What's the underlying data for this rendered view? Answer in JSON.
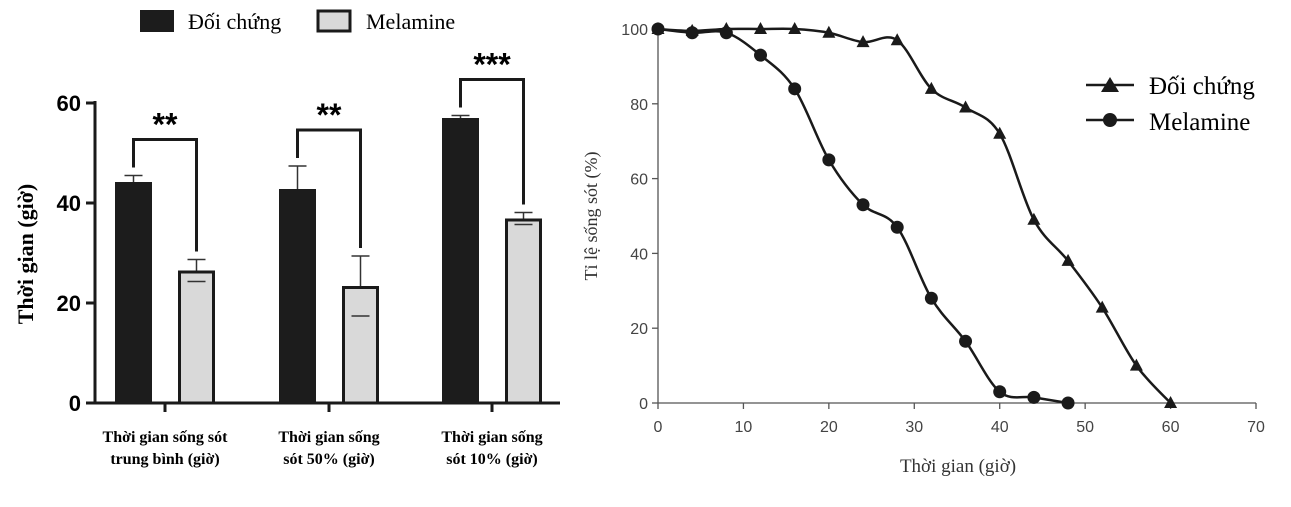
{
  "colors": {
    "control": "#1c1c1c",
    "melamine": "#d9d9d9",
    "axis": "#1a1a1a",
    "line_axis": "#555555"
  },
  "chart_data": [
    {
      "type": "bar",
      "legend": [
        "Đối chứng",
        "Melamine"
      ],
      "legend_placement": "top",
      "ylabel": "Thời gian (giờ)",
      "ylim": [
        0,
        60
      ],
      "yticks": [
        "0",
        "20",
        "40",
        "60"
      ],
      "categories": [
        [
          "Thời gian sống sót",
          "trung bình (giờ)"
        ],
        [
          "Thời gian sống",
          "sót 50% (giờ)"
        ],
        [
          "Thời gian sống",
          "sót 10% (giờ)"
        ]
      ],
      "series": [
        {
          "name": "Đối chứng",
          "values": [
            44.2,
            42.8,
            57.0
          ],
          "errors": [
            1.3,
            4.6,
            0.5
          ]
        },
        {
          "name": "Melamine",
          "values": [
            26.5,
            23.4,
            36.9
          ],
          "errors": [
            2.2,
            6.0,
            1.2
          ]
        }
      ],
      "significance": [
        "**",
        "**",
        "***"
      ]
    },
    {
      "type": "line",
      "xlabel": "Thời gian (giờ)",
      "ylabel": "Tỉ lệ sống sót (%)",
      "xlim": [
        0,
        70
      ],
      "ylim": [
        0,
        100
      ],
      "xticks": [
        "0",
        "10",
        "20",
        "30",
        "40",
        "50",
        "60",
        "70"
      ],
      "yticks": [
        "0",
        "20",
        "40",
        "60",
        "80",
        "100"
      ],
      "legend_placement": "top-right",
      "series": [
        {
          "name": "Đối chứng",
          "marker": "triangle",
          "points": [
            [
              0,
              100
            ],
            [
              4,
              99.5
            ],
            [
              8,
              100
            ],
            [
              12,
              100
            ],
            [
              16,
              100
            ],
            [
              20,
              99
            ],
            [
              24,
              96.5
            ],
            [
              28,
              97
            ],
            [
              32,
              84
            ],
            [
              36,
              79
            ],
            [
              40,
              72
            ],
            [
              44,
              49
            ],
            [
              48,
              38
            ],
            [
              52,
              25.5
            ],
            [
              56,
              10
            ],
            [
              60,
              0
            ]
          ]
        },
        {
          "name": "Melamine",
          "marker": "circle",
          "points": [
            [
              0,
              100
            ],
            [
              4,
              99
            ],
            [
              8,
              99
            ],
            [
              12,
              93
            ],
            [
              16,
              84
            ],
            [
              20,
              65
            ],
            [
              24,
              53
            ],
            [
              28,
              47
            ],
            [
              32,
              28
            ],
            [
              36,
              16.5
            ],
            [
              40,
              3
            ],
            [
              44,
              1.5
            ],
            [
              48,
              0
            ]
          ]
        }
      ]
    }
  ]
}
